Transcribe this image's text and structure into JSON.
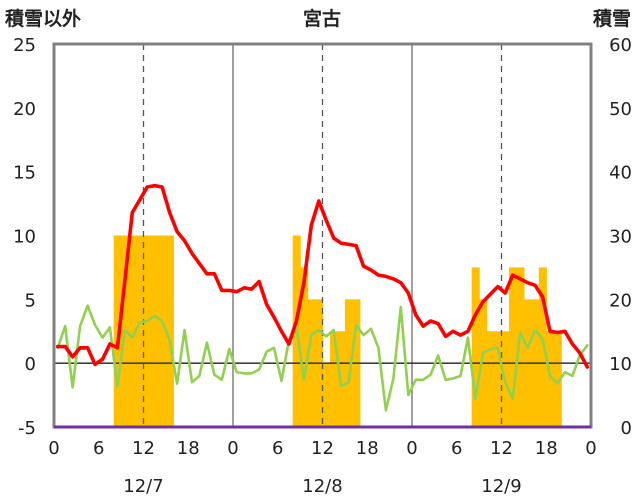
{
  "chart_data": {
    "type": "bar+line",
    "title": "宮古",
    "left_axis": {
      "label": "積雪以外",
      "ylim": [
        -5,
        25
      ],
      "ticks": [
        "-5",
        "0",
        "5",
        "10",
        "15",
        "20",
        "25"
      ]
    },
    "right_axis": {
      "label": "積雪",
      "ylim": [
        0,
        60
      ],
      "ticks": [
        "0",
        "10",
        "20",
        "30",
        "40",
        "50",
        "60"
      ]
    },
    "x_ticks": [
      "0",
      "6",
      "12",
      "18",
      "0",
      "6",
      "12",
      "18",
      "0",
      "6",
      "12",
      "18",
      "0"
    ],
    "date_labels": [
      "12/7",
      "12/8",
      "12/9"
    ],
    "colors": {
      "snowfall": "#ffc000",
      "temperature": "#ff0000",
      "wind": "#92d050",
      "frame": "#808080",
      "zero": "#404040",
      "bottom_line": "#7030a0"
    },
    "series": [
      {
        "key": "snowfall",
        "kind": "bar",
        "axis": "right",
        "hour": [
          8,
          9,
          10,
          11,
          12,
          13,
          14,
          15,
          32,
          33,
          34,
          35,
          36,
          37,
          38,
          39,
          40,
          56,
          57,
          58,
          59,
          60,
          61,
          62,
          63,
          64,
          65,
          66,
          67
        ],
        "values": [
          30,
          30,
          30,
          30,
          30,
          30,
          30,
          30,
          30,
          25,
          20,
          20,
          10,
          15,
          15,
          20,
          20,
          25,
          20,
          15,
          15,
          15,
          25,
          25,
          20,
          20,
          25,
          15,
          15
        ]
      },
      {
        "key": "temperature",
        "kind": "line",
        "axis": "left",
        "x": [
          0,
          1,
          2,
          3,
          4,
          5,
          6,
          7,
          8,
          9,
          10,
          11,
          12,
          13,
          14,
          15,
          16,
          17,
          18,
          19,
          20,
          21,
          22,
          23,
          24,
          25,
          26,
          27,
          28,
          29,
          30,
          31,
          32,
          33,
          34,
          35,
          36,
          37,
          38,
          39,
          40,
          41,
          42,
          43,
          44,
          45,
          46,
          47,
          48,
          49,
          50,
          51,
          52,
          53,
          54,
          55,
          56,
          57,
          58,
          59,
          60,
          61,
          62,
          63,
          64,
          65,
          66,
          67,
          68,
          69,
          70,
          71
        ],
        "values": [
          1.3,
          1.3,
          0.5,
          1.2,
          1.2,
          -0.1,
          0.3,
          1.5,
          1.2,
          6.5,
          11.8,
          12.8,
          13.8,
          13.9,
          13.8,
          11.8,
          10.3,
          9.6,
          8.6,
          7.8,
          7.0,
          7.0,
          5.7,
          5.7,
          5.6,
          5.9,
          5.8,
          6.4,
          4.6,
          3.6,
          2.5,
          1.5,
          3.3,
          6.3,
          10.8,
          12.7,
          11.2,
          9.8,
          9.4,
          9.3,
          9.2,
          7.6,
          7.3,
          6.9,
          6.8,
          6.6,
          6.3,
          5.5,
          3.8,
          2.9,
          3.3,
          3.1,
          2.1,
          2.5,
          2.2,
          2.5,
          3.8,
          4.8,
          5.4,
          6.0,
          5.5,
          6.9,
          6.6,
          6.3,
          6.1,
          5.2,
          2.5,
          2.4,
          2.5,
          1.5,
          0.8,
          -0.3
        ]
      },
      {
        "key": "wind",
        "kind": "line",
        "axis": "left",
        "x": [
          0,
          1,
          2,
          3,
          4,
          5,
          6,
          7,
          8,
          9,
          10,
          11,
          12,
          13,
          14,
          15,
          16,
          17,
          18,
          19,
          20,
          21,
          22,
          23,
          24,
          25,
          26,
          27,
          28,
          29,
          30,
          31,
          32,
          33,
          34,
          35,
          36,
          37,
          38,
          39,
          40,
          41,
          42,
          43,
          44,
          45,
          46,
          47,
          48,
          49,
          50,
          51,
          52,
          53,
          54,
          55,
          56,
          57,
          58,
          59,
          60,
          61,
          62,
          63,
          64,
          65,
          66,
          67,
          68,
          69,
          70,
          71
        ],
        "values": [
          1.2,
          2.9,
          -1.9,
          2.9,
          4.5,
          3.0,
          2.0,
          2.8,
          -1.8,
          2.6,
          2.0,
          3.2,
          3.3,
          3.7,
          3.3,
          1.8,
          -1.6,
          2.6,
          -1.5,
          -1.0,
          1.6,
          -0.9,
          -1.3,
          1.1,
          -0.7,
          -0.8,
          -0.8,
          -0.5,
          0.9,
          1.2,
          -1.4,
          1.8,
          2.9,
          -1.3,
          2.2,
          2.6,
          2.1,
          2.6,
          -1.8,
          -1.5,
          3.0,
          2.2,
          2.7,
          1.2,
          -3.7,
          -1.2,
          4.4,
          -2.5,
          -1.3,
          -1.3,
          -0.9,
          0.6,
          -1.3,
          -1.2,
          -1.0,
          2.0,
          -2.8,
          0.8,
          1.1,
          1.2,
          -1.5,
          -2.8,
          2.4,
          1.2,
          2.6,
          1.9,
          -1.0,
          -1.6,
          -0.7,
          -1.0,
          0.6,
          1.4
        ]
      }
    ]
  }
}
